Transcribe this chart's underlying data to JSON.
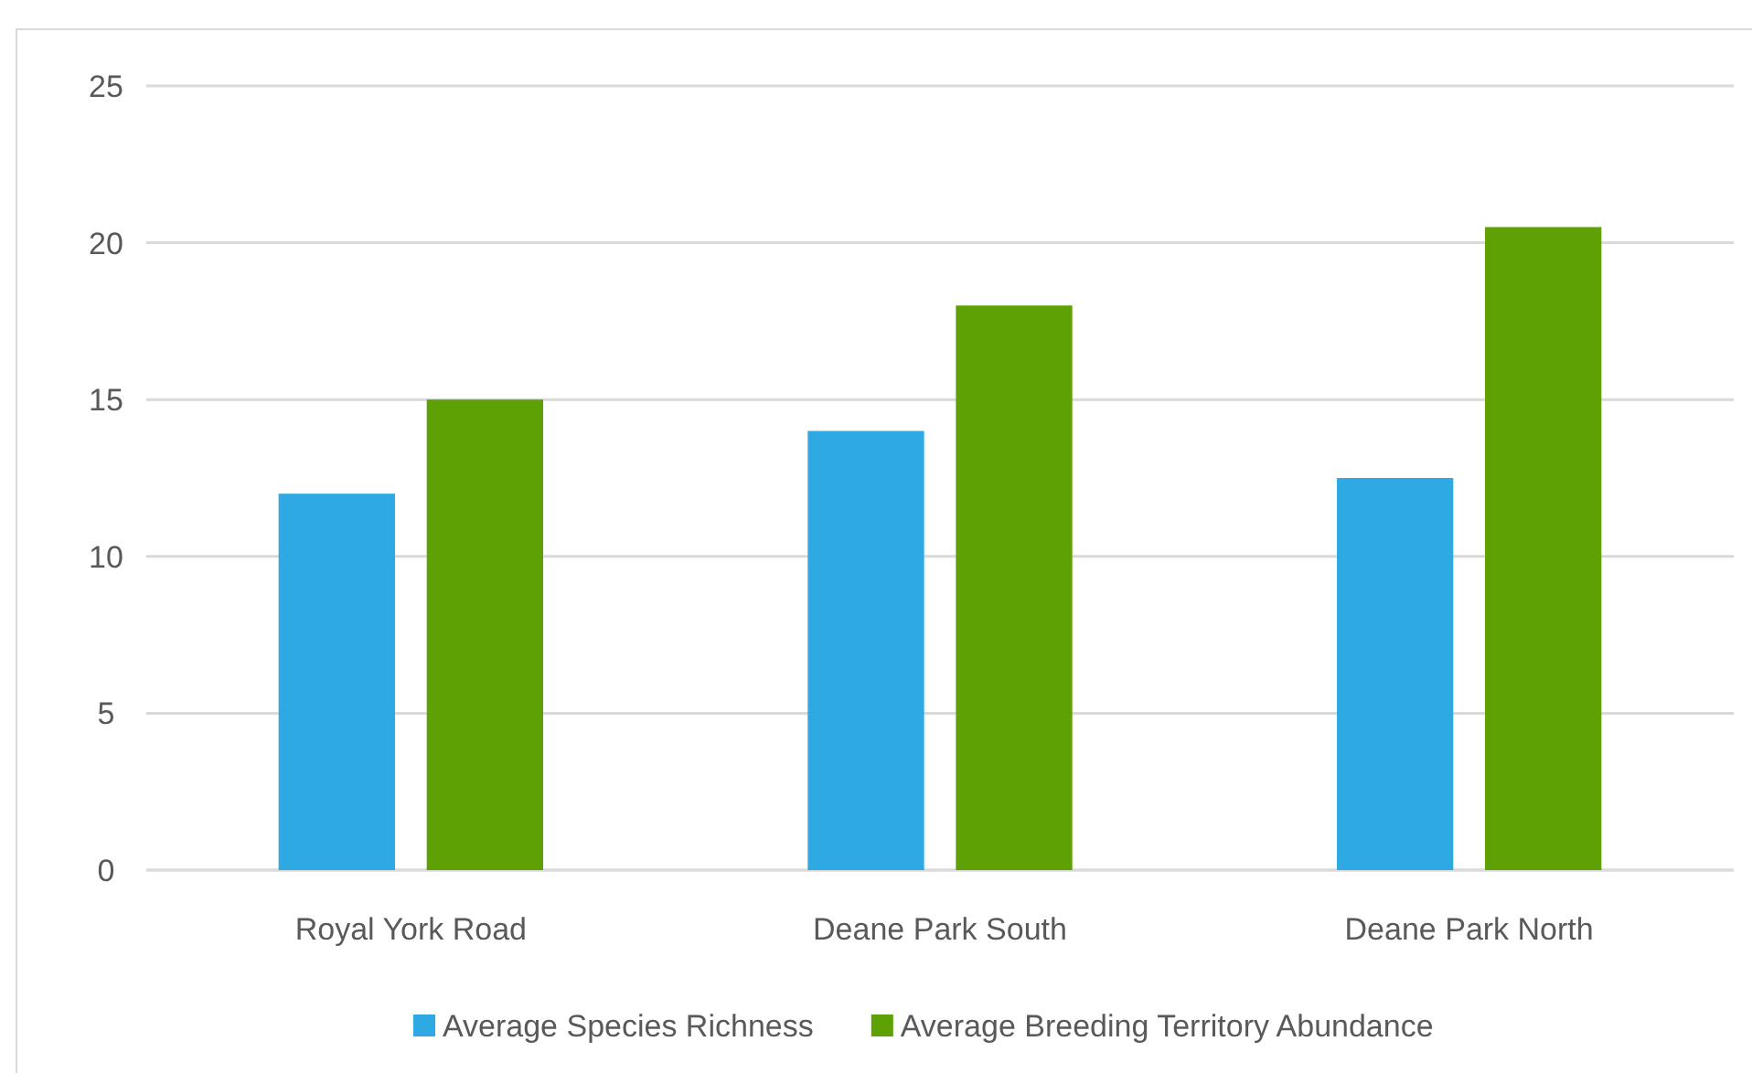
{
  "chart_data": {
    "type": "bar",
    "categories": [
      "Royal York Road",
      "Deane Park South",
      "Deane Park North"
    ],
    "series": [
      {
        "name": "Average Species Richness",
        "color": "#2ea9e1",
        "values": [
          12,
          14,
          12.5
        ]
      },
      {
        "name": "Average Breeding Territory Abundance",
        "color": "#5ea104",
        "values": [
          15,
          18,
          20.5
        ]
      }
    ],
    "ylim": [
      0,
      25
    ],
    "yticks": [
      0,
      5,
      10,
      15,
      20,
      25
    ],
    "grid": "y",
    "legend": "bottom"
  }
}
